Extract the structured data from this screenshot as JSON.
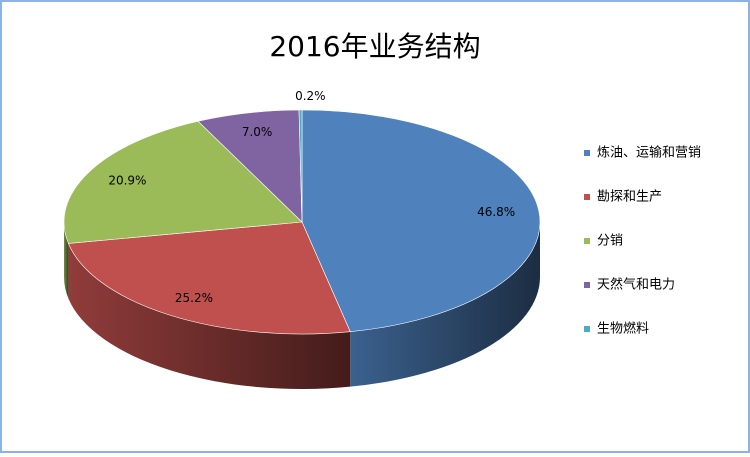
{
  "chart_data": {
    "type": "pie",
    "title": "2016年业务结构",
    "categories": [
      "炼油、运输和营销",
      "勘探和生产",
      "分销",
      "天然气和电力",
      "生物燃料"
    ],
    "values": [
      46.8,
      25.2,
      20.9,
      7.0,
      0.2
    ],
    "value_labels": [
      "46.8%",
      "25.2%",
      "20.9%",
      "7.0%",
      "0.2%"
    ],
    "colors": [
      "#4f81bd",
      "#c0504d",
      "#9bbb59",
      "#8064a2",
      "#4bacc6"
    ],
    "legend": "right"
  }
}
